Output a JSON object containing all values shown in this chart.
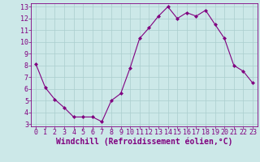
{
  "x": [
    0,
    1,
    2,
    3,
    4,
    5,
    6,
    7,
    8,
    9,
    10,
    11,
    12,
    13,
    14,
    15,
    16,
    17,
    18,
    19,
    20,
    21,
    22,
    23
  ],
  "y": [
    8.1,
    6.1,
    5.1,
    4.4,
    3.6,
    3.6,
    3.6,
    3.2,
    5.0,
    5.6,
    7.8,
    10.3,
    11.2,
    12.2,
    13.0,
    12.0,
    12.5,
    12.2,
    12.7,
    11.5,
    10.3,
    8.0,
    7.5,
    6.5
  ],
  "line_color": "#800080",
  "bg_color": "#cce8e8",
  "grid_color": "#aacece",
  "xlabel": "Windchill (Refroidissement éolien,°C)",
  "ylim_min": 2.8,
  "ylim_max": 13.3,
  "xlim_min": -0.5,
  "xlim_max": 23.5,
  "yticks": [
    3,
    4,
    5,
    6,
    7,
    8,
    9,
    10,
    11,
    12,
    13
  ],
  "xticks": [
    0,
    1,
    2,
    3,
    4,
    5,
    6,
    7,
    8,
    9,
    10,
    11,
    12,
    13,
    14,
    15,
    16,
    17,
    18,
    19,
    20,
    21,
    22,
    23
  ],
  "tick_color": "#800080",
  "label_color": "#800080",
  "xlabel_fontsize": 7,
  "tick_fontsize": 6,
  "marker": "D",
  "markersize": 2,
  "linewidth": 0.8
}
